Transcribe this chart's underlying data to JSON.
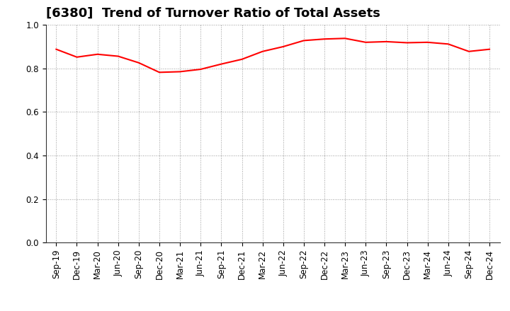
{
  "title": "[6380]  Trend of Turnover Ratio of Total Assets",
  "line_color": "#ff0000",
  "line_width": 1.5,
  "background_color": "#ffffff",
  "grid_color": "#999999",
  "ylim": [
    0.0,
    1.0
  ],
  "yticks": [
    0.0,
    0.2,
    0.4,
    0.6,
    0.8,
    1.0
  ],
  "x_labels": [
    "Sep-19",
    "Dec-19",
    "Mar-20",
    "Jun-20",
    "Sep-20",
    "Dec-20",
    "Mar-21",
    "Jun-21",
    "Sep-21",
    "Dec-21",
    "Mar-22",
    "Jun-22",
    "Sep-22",
    "Dec-22",
    "Mar-23",
    "Jun-23",
    "Sep-23",
    "Dec-23",
    "Mar-24",
    "Jun-24",
    "Sep-24",
    "Dec-24"
  ],
  "values": [
    0.888,
    0.852,
    0.865,
    0.856,
    0.826,
    0.782,
    0.785,
    0.796,
    0.82,
    0.842,
    0.878,
    0.9,
    0.928,
    0.935,
    0.938,
    0.92,
    0.923,
    0.918,
    0.92,
    0.912,
    0.878,
    0.888
  ],
  "title_fontsize": 13,
  "tick_fontsize": 8.5,
  "fig_width": 7.2,
  "fig_height": 4.4,
  "dpi": 100
}
